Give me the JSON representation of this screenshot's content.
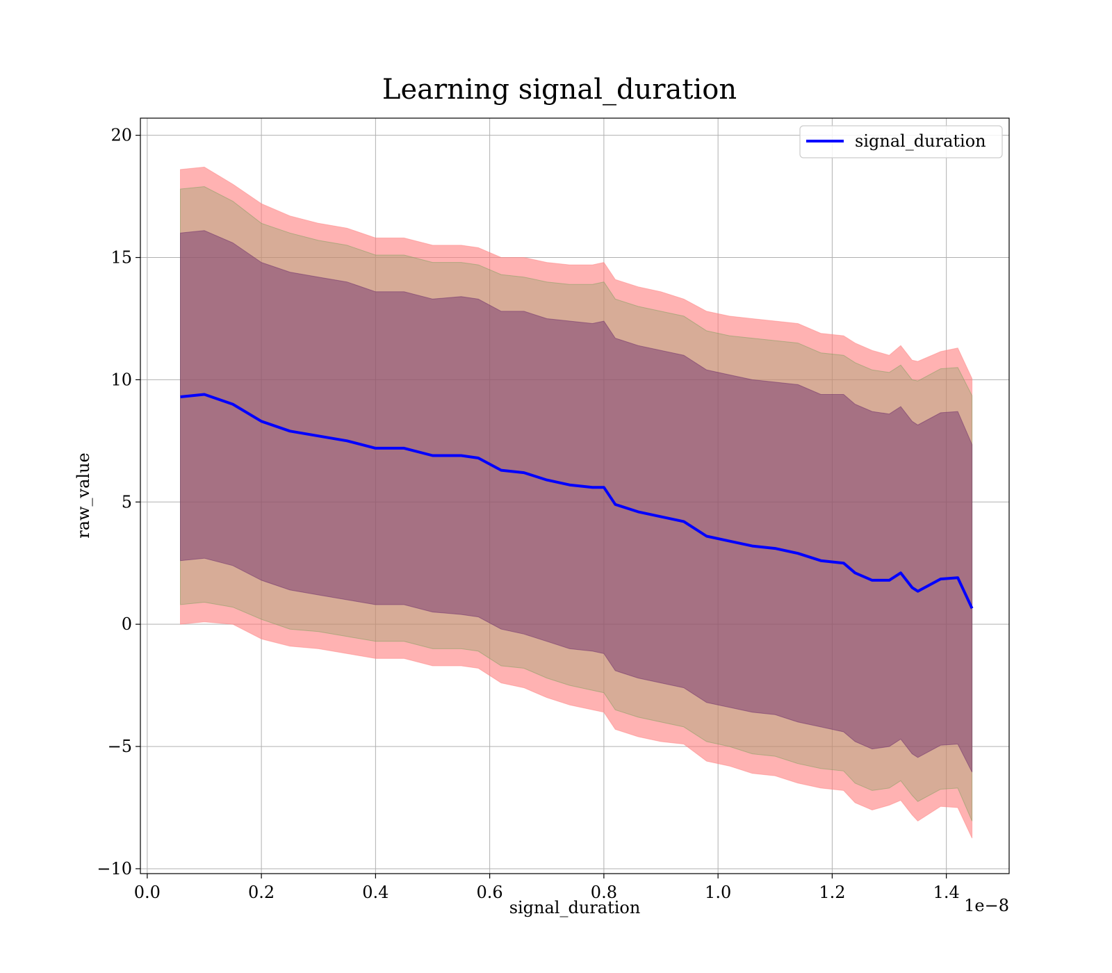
{
  "chart_data": {
    "type": "area",
    "title": "Learning signal_duration",
    "xlabel": "signal_duration",
    "ylabel": "raw_value",
    "x_scale_label": "1e−8",
    "xlim": [
      -0.012,
      1.51
    ],
    "ylim": [
      -10.2,
      20.7
    ],
    "x_ticks": [
      0.0,
      0.2,
      0.4,
      0.6,
      0.8,
      1.0,
      1.2,
      1.4
    ],
    "x_tick_labels": [
      "0.0",
      "0.2",
      "0.4",
      "0.6",
      "0.8",
      "1.0",
      "1.2",
      "1.4"
    ],
    "y_ticks": [
      -10,
      -5,
      0,
      5,
      10,
      15,
      20
    ],
    "y_tick_labels": [
      "−10",
      "−5",
      "0",
      "5",
      "10",
      "15",
      "20"
    ],
    "grid": true,
    "legend_position": "upper right",
    "x": [
      0.058,
      0.1,
      0.15,
      0.2,
      0.25,
      0.3,
      0.35,
      0.4,
      0.45,
      0.5,
      0.55,
      0.58,
      0.62,
      0.66,
      0.7,
      0.74,
      0.78,
      0.8,
      0.82,
      0.86,
      0.9,
      0.94,
      0.98,
      1.02,
      1.06,
      1.1,
      1.14,
      1.18,
      1.22,
      1.24,
      1.27,
      1.3,
      1.32,
      1.34,
      1.35,
      1.39,
      1.42,
      1.445
    ],
    "series": [
      {
        "name": "signal_duration",
        "color": "#0000ff",
        "values": [
          9.3,
          9.4,
          9.0,
          8.3,
          7.9,
          7.7,
          7.5,
          7.2,
          7.2,
          6.9,
          6.9,
          6.8,
          6.3,
          6.2,
          5.9,
          5.7,
          5.6,
          5.6,
          4.9,
          4.6,
          4.4,
          4.2,
          3.6,
          3.4,
          3.2,
          3.1,
          2.9,
          2.6,
          2.5,
          2.1,
          1.8,
          1.8,
          2.1,
          1.5,
          1.35,
          1.85,
          1.9,
          0.65
        ]
      }
    ],
    "bands": [
      {
        "name": "outer",
        "color": "#ff7f7f",
        "opacity": 0.6,
        "half_width": [
          9.3,
          9.3,
          9.0,
          8.9,
          8.8,
          8.7,
          8.7,
          8.6,
          8.6,
          8.6,
          8.6,
          8.6,
          8.7,
          8.8,
          8.9,
          9.0,
          9.1,
          9.2,
          9.2,
          9.2,
          9.2,
          9.1,
          9.2,
          9.2,
          9.3,
          9.3,
          9.4,
          9.3,
          9.3,
          9.4,
          9.4,
          9.2,
          9.3,
          9.3,
          9.4,
          9.3,
          9.4,
          9.4
        ]
      },
      {
        "name": "middle",
        "color": "#7ba05b",
        "opacity": 0.3,
        "half_width": [
          8.5,
          8.5,
          8.3,
          8.1,
          8.1,
          8.0,
          8.0,
          7.9,
          7.9,
          7.9,
          7.9,
          7.9,
          8.0,
          8.0,
          8.1,
          8.2,
          8.3,
          8.4,
          8.4,
          8.4,
          8.4,
          8.4,
          8.4,
          8.4,
          8.5,
          8.5,
          8.6,
          8.5,
          8.5,
          8.6,
          8.6,
          8.5,
          8.5,
          8.5,
          8.6,
          8.6,
          8.6,
          8.7
        ]
      },
      {
        "name": "inner",
        "color": "#6a2a6a",
        "opacity": 0.45,
        "half_width": [
          6.7,
          6.7,
          6.6,
          6.5,
          6.5,
          6.5,
          6.5,
          6.4,
          6.4,
          6.4,
          6.5,
          6.5,
          6.5,
          6.6,
          6.6,
          6.7,
          6.7,
          6.8,
          6.8,
          6.8,
          6.8,
          6.8,
          6.8,
          6.8,
          6.8,
          6.8,
          6.9,
          6.8,
          6.9,
          6.9,
          6.9,
          6.8,
          6.8,
          6.8,
          6.8,
          6.8,
          6.8,
          6.7
        ]
      }
    ]
  }
}
